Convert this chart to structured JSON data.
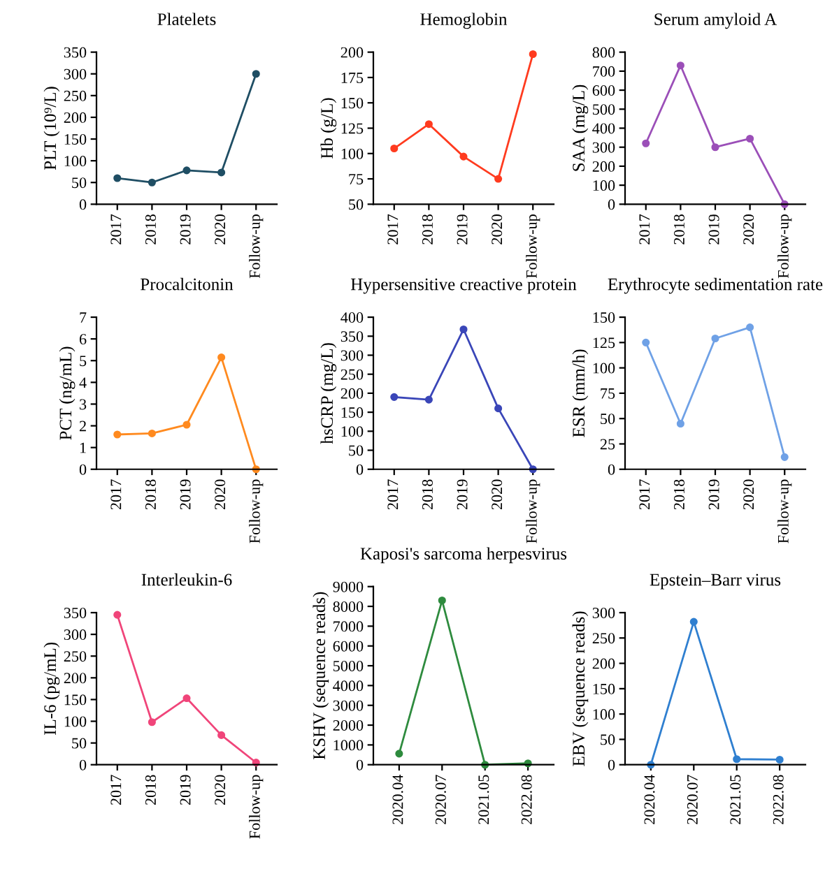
{
  "chart_data": [
    {
      "type": "line",
      "title": "Platelets",
      "ylabel": "PLT (10⁹/L)",
      "categories": [
        "2017",
        "2018",
        "2019",
        "2020",
        "Follow-up"
      ],
      "series": [
        {
          "color": "#1f4e64",
          "values": [
            60,
            50,
            78,
            73,
            300
          ]
        }
      ],
      "ylim": [
        0,
        350
      ],
      "yticks": [
        0,
        50,
        100,
        150,
        200,
        250,
        300,
        350
      ],
      "marker": "circle",
      "line_style": "solid",
      "grid": false,
      "legend": false
    },
    {
      "type": "line",
      "title": "Hemoglobin",
      "ylabel": "Hb (g/L)",
      "categories": [
        "2017",
        "2018",
        "2019",
        "2020",
        "Follow-up"
      ],
      "series": [
        {
          "color": "#ff3b1f",
          "values": [
            105,
            129,
            97,
            75,
            198
          ]
        }
      ],
      "ylim": [
        50,
        200
      ],
      "yticks": [
        50,
        75,
        100,
        125,
        150,
        175,
        200
      ],
      "marker": "circle",
      "line_style": "solid",
      "grid": false,
      "legend": false
    },
    {
      "type": "line",
      "title": "Serum amyloid A",
      "ylabel": "SAA (mg/L)",
      "categories": [
        "2017",
        "2018",
        "2019",
        "2020",
        "Follow-up"
      ],
      "series": [
        {
          "color": "#9b4fb8",
          "values": [
            320,
            730,
            300,
            345,
            0
          ]
        }
      ],
      "ylim": [
        0,
        800
      ],
      "yticks": [
        0,
        100,
        200,
        300,
        400,
        500,
        600,
        700,
        800
      ],
      "marker": "circle",
      "line_style": "solid",
      "grid": false,
      "legend": false
    },
    {
      "type": "line",
      "title": "Procalcitonin",
      "ylabel": "PCT (ng/mL)",
      "categories": [
        "2017",
        "2018",
        "2019",
        "2020",
        "Follow-up"
      ],
      "series": [
        {
          "color": "#ff8a1f",
          "values": [
            1.6,
            1.65,
            2.05,
            5.15,
            0
          ]
        }
      ],
      "ylim": [
        0,
        7
      ],
      "yticks": [
        0,
        1,
        2,
        3,
        4,
        5,
        6,
        7
      ],
      "marker": "circle",
      "line_style": "solid",
      "grid": false,
      "legend": false
    },
    {
      "type": "line",
      "title": "Hypersensitive creactive protein",
      "ylabel": "hsCRP (mg/L)",
      "categories": [
        "2017",
        "2018",
        "2019",
        "2020",
        "Follow-up"
      ],
      "series": [
        {
          "color": "#3a46b8",
          "values": [
            190,
            183,
            368,
            160,
            0
          ]
        }
      ],
      "ylim": [
        0,
        400
      ],
      "yticks": [
        0,
        50,
        100,
        150,
        200,
        250,
        300,
        350,
        400
      ],
      "marker": "circle",
      "line_style": "solid",
      "grid": false,
      "legend": false
    },
    {
      "type": "line",
      "title": "Erythrocyte sedimentation rate",
      "ylabel": "ESR (mm/h)",
      "categories": [
        "2017",
        "2018",
        "2019",
        "2020",
        "Follow-up"
      ],
      "series": [
        {
          "color": "#6fa1e6",
          "values": [
            125,
            45,
            129,
            140,
            12
          ]
        }
      ],
      "ylim": [
        0,
        150
      ],
      "yticks": [
        0,
        25,
        50,
        75,
        100,
        125,
        150
      ],
      "marker": "circle",
      "line_style": "solid",
      "grid": false,
      "legend": false
    },
    {
      "type": "line",
      "title": "Interleukin-6",
      "ylabel": "IL-6 (pg/mL)",
      "categories": [
        "2017",
        "2018",
        "2019",
        "2020",
        "Follow-up"
      ],
      "series": [
        {
          "color": "#f0457a",
          "values": [
            345,
            98,
            153,
            68,
            5
          ]
        }
      ],
      "ylim": [
        0,
        350
      ],
      "yticks": [
        0,
        50,
        100,
        150,
        200,
        250,
        300,
        350
      ],
      "marker": "circle",
      "line_style": "solid",
      "grid": false,
      "legend": false
    },
    {
      "type": "line",
      "title": "Kaposi's sarcoma herpesvirus",
      "ylabel": "KSHV (sequence reads)",
      "categories": [
        "2020.04",
        "2020.07",
        "2021.05",
        "2022.08"
      ],
      "series": [
        {
          "color": "#2e8b3e",
          "values": [
            560,
            8300,
            0,
            70
          ]
        }
      ],
      "ylim": [
        0,
        9000
      ],
      "yticks": [
        0,
        1000,
        2000,
        3000,
        4000,
        5000,
        6000,
        7000,
        8000,
        9000
      ],
      "marker": "circle",
      "line_style": "solid",
      "grid": false,
      "legend": false
    },
    {
      "type": "line",
      "title": "Epstein–Barr virus",
      "ylabel": "EBV (sequence reads)",
      "categories": [
        "2020.04",
        "2020.07",
        "2021.05",
        "2022.08"
      ],
      "series": [
        {
          "color": "#2f7fd0",
          "values": [
            0,
            282,
            11,
            10
          ]
        }
      ],
      "ylim": [
        0,
        300
      ],
      "yticks": [
        0,
        50,
        100,
        150,
        200,
        250,
        300
      ],
      "marker": "circle",
      "line_style": "solid",
      "grid": false,
      "legend": false
    }
  ]
}
